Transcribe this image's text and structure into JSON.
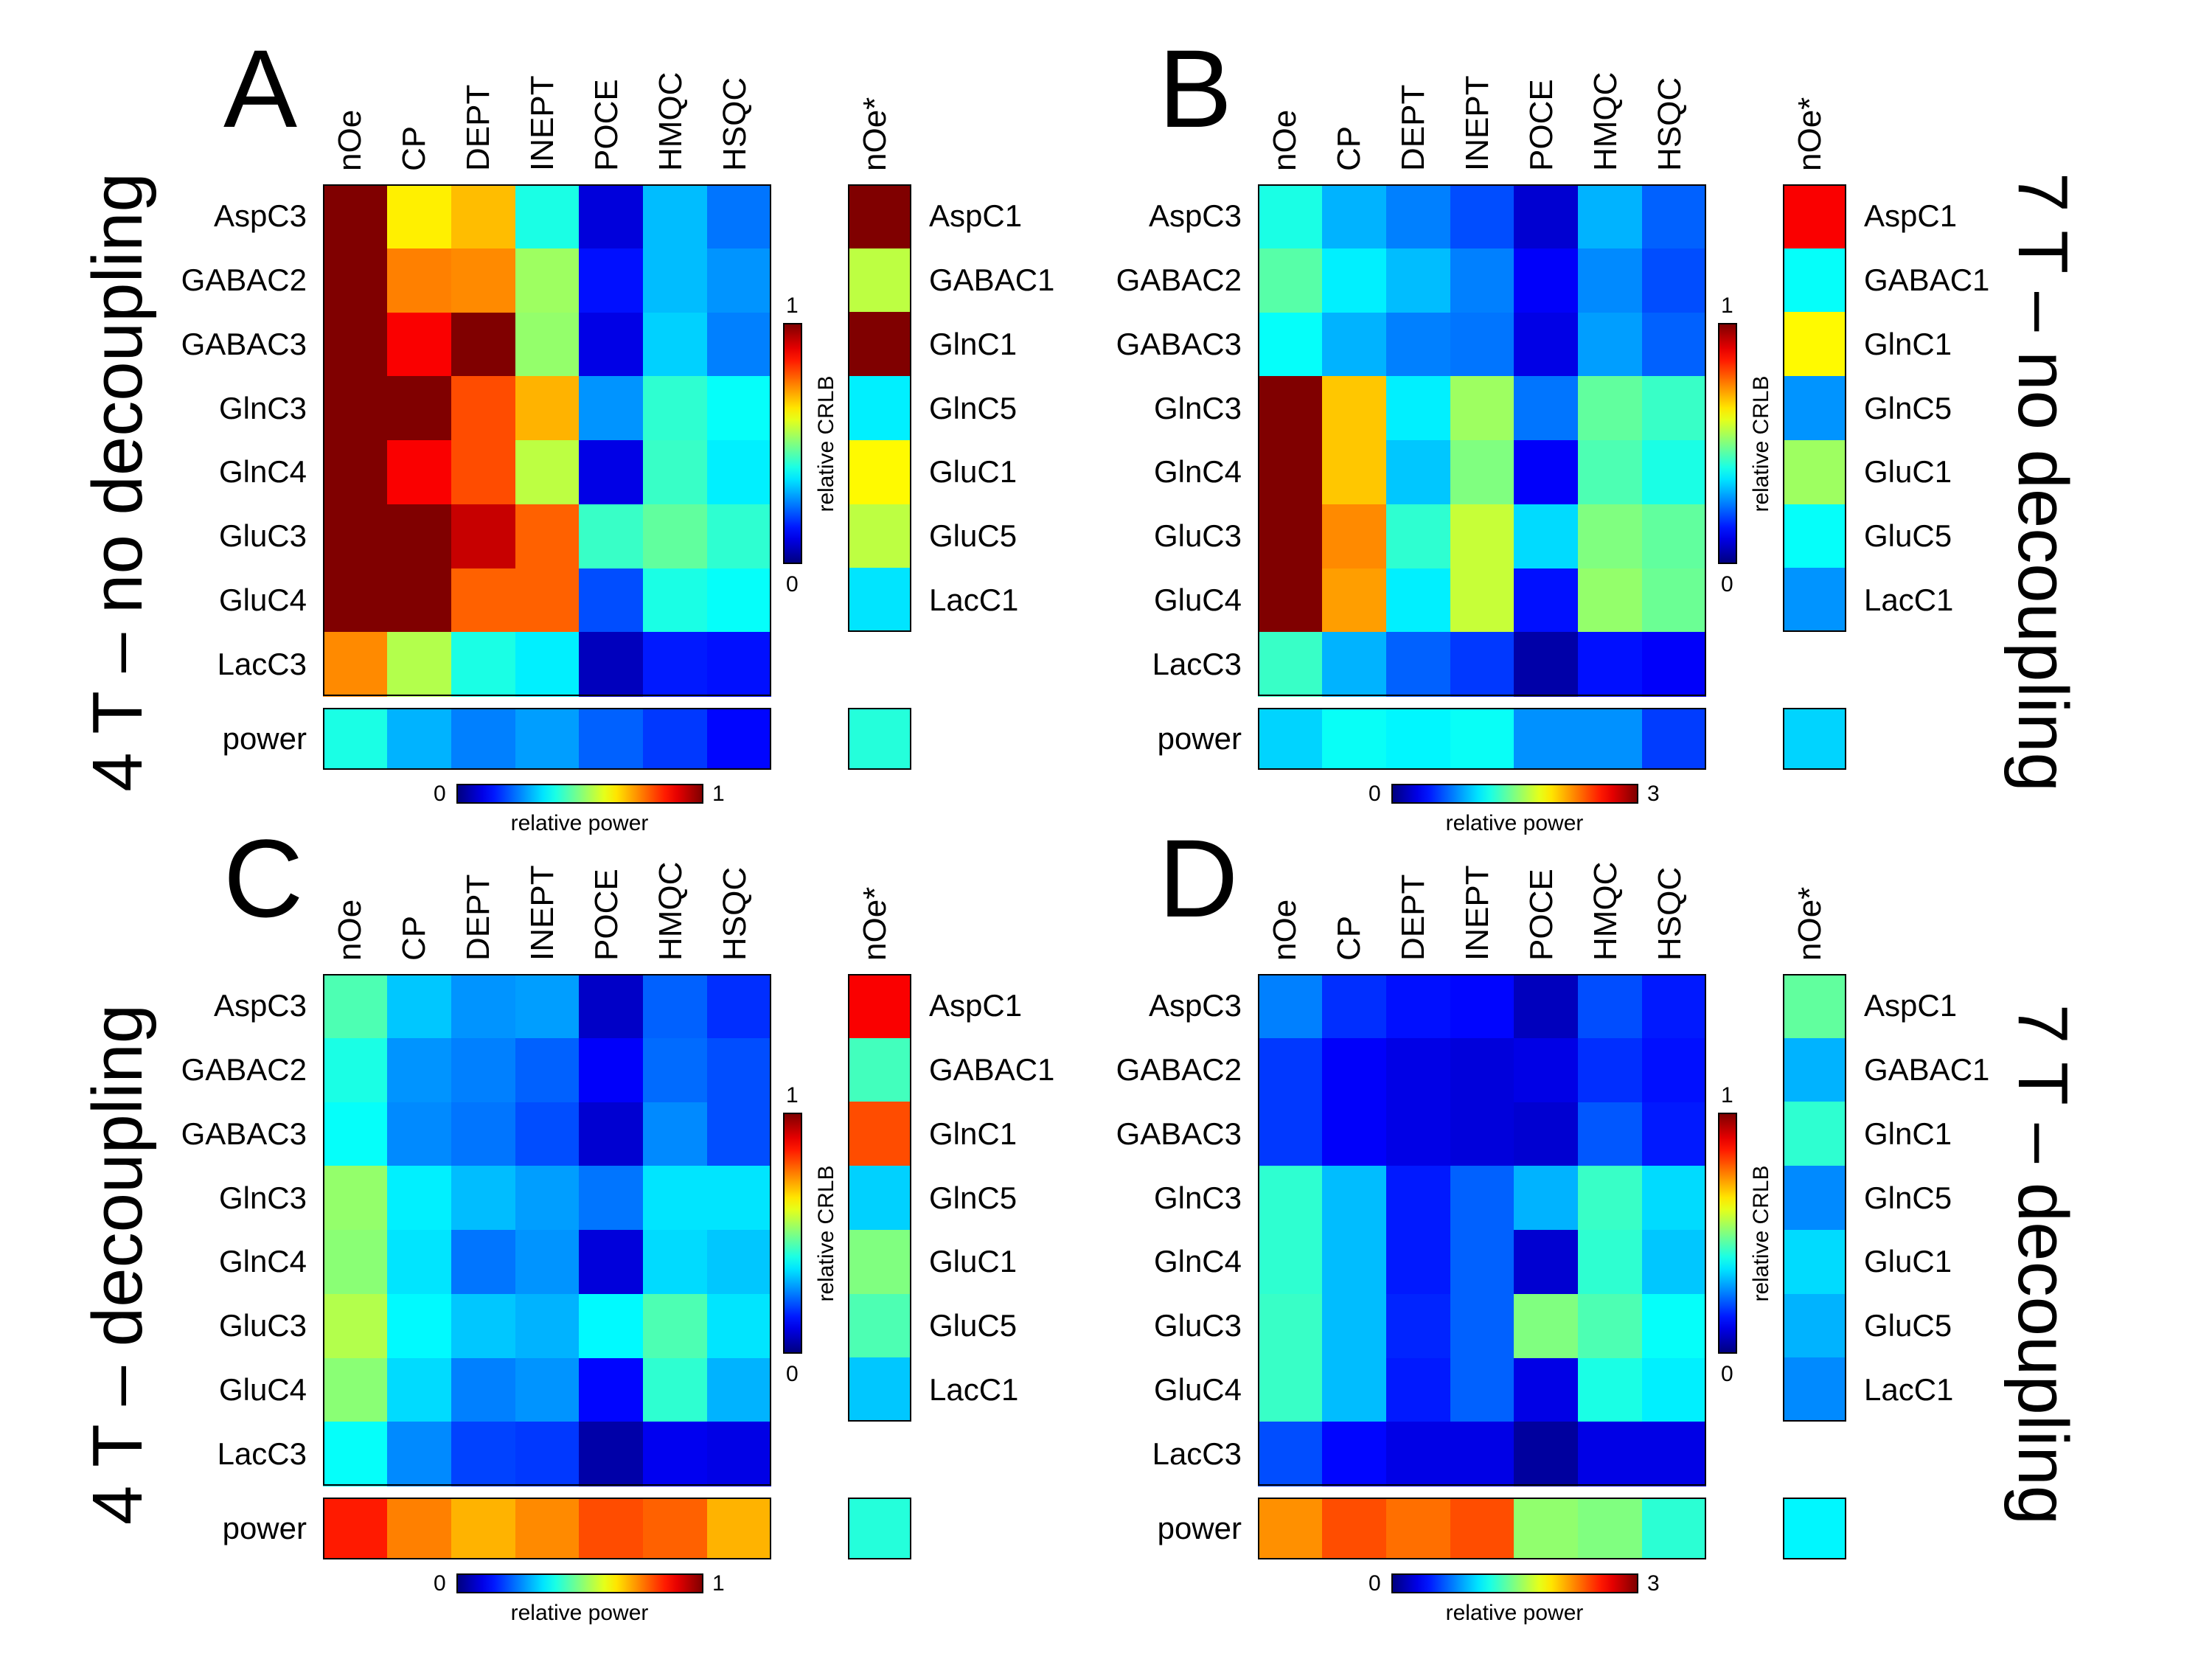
{
  "chart_data": [
    {
      "type": "heatmap",
      "panel": "A",
      "side_title": "4 T – no decoupling",
      "columns": [
        "nOe",
        "CP",
        "DEPT",
        "INEPT",
        "POCE",
        "HMQC",
        "HSQC"
      ],
      "rows": [
        "AspC3",
        "GABAC2",
        "GABAC3",
        "GlnC3",
        "GlnC4",
        "GluC3",
        "GluC4",
        "LacC3"
      ],
      "values": [
        [
          1,
          0.64,
          0.69,
          0.4,
          0.09,
          0.31,
          0.24
        ],
        [
          1,
          0.75,
          0.74,
          0.53,
          0.14,
          0.31,
          0.27
        ],
        [
          1,
          0.88,
          1,
          0.52,
          0.1,
          0.33,
          0.25
        ],
        [
          1,
          1,
          0.8,
          0.7,
          0.27,
          0.42,
          0.38
        ],
        [
          1,
          0.88,
          0.8,
          0.56,
          0.1,
          0.43,
          0.36
        ],
        [
          1,
          1,
          0.93,
          0.78,
          0.43,
          0.47,
          0.42
        ],
        [
          1,
          1,
          0.78,
          0.78,
          0.2,
          0.4,
          0.38
        ],
        [
          0.74,
          0.55,
          0.4,
          0.36,
          0.06,
          0.15,
          0.14
        ]
      ],
      "power_label": "power",
      "power": [
        0.4,
        0.3,
        0.25,
        0.28,
        0.22,
        0.18,
        0.13
      ],
      "noe_star_label": "nOe*",
      "noe_star_rows": [
        "AspC1",
        "GABAC1",
        "GlnC1",
        "GlnC5",
        "GluC1",
        "GluC5",
        "LacC1"
      ],
      "noe_star_values": [
        1,
        0.56,
        1,
        0.36,
        0.63,
        0.56,
        0.35
      ],
      "noe_star_power": 0.41,
      "crlb_label": "relative CRLB",
      "crlb_range": [
        0,
        1
      ],
      "crlb_min_label": "0",
      "crlb_max_label": "1",
      "power_colorbar_label": "relative power",
      "power_range": [
        0,
        1
      ],
      "power_min_label": "0",
      "power_max_label": "1",
      "colormap": "jet"
    },
    {
      "type": "heatmap",
      "panel": "B",
      "side_title": "7 T – no decoupling",
      "columns": [
        "nOe",
        "CP",
        "DEPT",
        "INEPT",
        "POCE",
        "HMQC",
        "HSQC"
      ],
      "rows": [
        "AspC3",
        "GABAC2",
        "GABAC3",
        "GlnC3",
        "GlnC4",
        "GluC3",
        "GluC4",
        "LacC3"
      ],
      "values": [
        [
          0.4,
          0.3,
          0.25,
          0.2,
          0.08,
          0.3,
          0.22
        ],
        [
          0.46,
          0.36,
          0.31,
          0.25,
          0.12,
          0.26,
          0.2
        ],
        [
          0.38,
          0.3,
          0.25,
          0.24,
          0.1,
          0.28,
          0.22
        ],
        [
          1,
          0.68,
          0.36,
          0.53,
          0.24,
          0.47,
          0.43
        ],
        [
          1,
          0.68,
          0.32,
          0.5,
          0.12,
          0.45,
          0.4
        ],
        [
          1,
          0.74,
          0.42,
          0.57,
          0.34,
          0.5,
          0.47
        ],
        [
          1,
          0.72,
          0.36,
          0.57,
          0.14,
          0.52,
          0.48
        ],
        [
          0.43,
          0.3,
          0.22,
          0.18,
          0.04,
          0.14,
          0.12
        ]
      ],
      "power_label": "power",
      "power": [
        1.0,
        1.15,
        1.1,
        1.15,
        0.8,
        0.8,
        0.55
      ],
      "noe_star_label": "nOe*",
      "noe_star_rows": [
        "AspC1",
        "GABAC1",
        "GlnC1",
        "GlnC5",
        "GluC1",
        "GluC5",
        "LacC1"
      ],
      "noe_star_values": [
        0.88,
        0.38,
        0.63,
        0.27,
        0.53,
        0.38,
        0.27
      ],
      "noe_star_power": 1.0,
      "crlb_label": "relative CRLB",
      "crlb_range": [
        0,
        1
      ],
      "crlb_min_label": "0",
      "crlb_max_label": "1",
      "power_colorbar_label": "relative power",
      "power_range": [
        0,
        3
      ],
      "power_min_label": "0",
      "power_max_label": "3",
      "colormap": "jet"
    },
    {
      "type": "heatmap",
      "panel": "C",
      "side_title": "4 T – decoupling",
      "columns": [
        "nOe",
        "CP",
        "DEPT",
        "INEPT",
        "POCE",
        "HMQC",
        "HSQC"
      ],
      "rows": [
        "AspC3",
        "GABAC2",
        "GABAC3",
        "GlnC3",
        "GlnC4",
        "GluC3",
        "GluC4",
        "LacC3"
      ],
      "values": [
        [
          0.45,
          0.32,
          0.27,
          0.28,
          0.07,
          0.22,
          0.17
        ],
        [
          0.4,
          0.27,
          0.25,
          0.22,
          0.12,
          0.23,
          0.2
        ],
        [
          0.38,
          0.26,
          0.24,
          0.2,
          0.08,
          0.26,
          0.2
        ],
        [
          0.52,
          0.36,
          0.31,
          0.28,
          0.24,
          0.35,
          0.35
        ],
        [
          0.51,
          0.35,
          0.24,
          0.27,
          0.09,
          0.34,
          0.32
        ],
        [
          0.55,
          0.37,
          0.32,
          0.3,
          0.37,
          0.45,
          0.35
        ],
        [
          0.51,
          0.34,
          0.25,
          0.27,
          0.13,
          0.42,
          0.3
        ],
        [
          0.38,
          0.26,
          0.19,
          0.18,
          0.04,
          0.11,
          0.1
        ]
      ],
      "power_label": "power",
      "power": [
        0.85,
        0.75,
        0.7,
        0.74,
        0.8,
        0.78,
        0.7
      ],
      "noe_star_label": "nOe*",
      "noe_star_rows": [
        "AspC1",
        "GABAC1",
        "GlnC1",
        "GlnC5",
        "GluC1",
        "GluC5",
        "LacC1"
      ],
      "noe_star_values": [
        0.88,
        0.44,
        0.8,
        0.33,
        0.5,
        0.45,
        0.32
      ],
      "noe_star_power": 0.41,
      "crlb_label": "relative CRLB",
      "crlb_range": [
        0,
        1
      ],
      "crlb_min_label": "0",
      "crlb_max_label": "1",
      "power_colorbar_label": "relative power",
      "power_range": [
        0,
        1
      ],
      "power_min_label": "0",
      "power_max_label": "1",
      "colormap": "jet"
    },
    {
      "type": "heatmap",
      "panel": "D",
      "side_title": "7 T – decoupling",
      "columns": [
        "nOe",
        "CP",
        "DEPT",
        "INEPT",
        "POCE",
        "HMQC",
        "HSQC"
      ],
      "rows": [
        "AspC3",
        "GABAC2",
        "GABAC3",
        "GlnC3",
        "GlnC4",
        "GluC3",
        "GluC4",
        "LacC3"
      ],
      "values": [
        [
          0.25,
          0.17,
          0.14,
          0.13,
          0.06,
          0.2,
          0.15
        ],
        [
          0.18,
          0.12,
          0.1,
          0.09,
          0.1,
          0.17,
          0.14
        ],
        [
          0.18,
          0.12,
          0.1,
          0.09,
          0.08,
          0.21,
          0.15
        ],
        [
          0.42,
          0.31,
          0.15,
          0.22,
          0.3,
          0.43,
          0.34
        ],
        [
          0.42,
          0.31,
          0.15,
          0.22,
          0.08,
          0.42,
          0.32
        ],
        [
          0.43,
          0.31,
          0.16,
          0.22,
          0.5,
          0.45,
          0.38
        ],
        [
          0.43,
          0.31,
          0.15,
          0.22,
          0.1,
          0.4,
          0.36
        ],
        [
          0.2,
          0.13,
          0.1,
          0.1,
          0.03,
          0.1,
          0.1
        ]
      ],
      "power_label": "power",
      "power": [
        2.2,
        2.4,
        2.3,
        2.4,
        1.55,
        1.5,
        1.25
      ],
      "noe_star_label": "nOe*",
      "noe_star_rows": [
        "AspC1",
        "GABAC1",
        "GlnC1",
        "GlnC5",
        "GluC1",
        "GluC5",
        "LacC1"
      ],
      "noe_star_values": [
        0.47,
        0.3,
        0.42,
        0.26,
        0.34,
        0.3,
        0.26
      ],
      "noe_star_power": 1.1,
      "crlb_label": "relative CRLB",
      "crlb_range": [
        0,
        1
      ],
      "crlb_min_label": "0",
      "crlb_max_label": "1",
      "power_colorbar_label": "relative power",
      "power_range": [
        0,
        3
      ],
      "power_min_label": "0",
      "power_max_label": "3",
      "colormap": "jet"
    }
  ]
}
